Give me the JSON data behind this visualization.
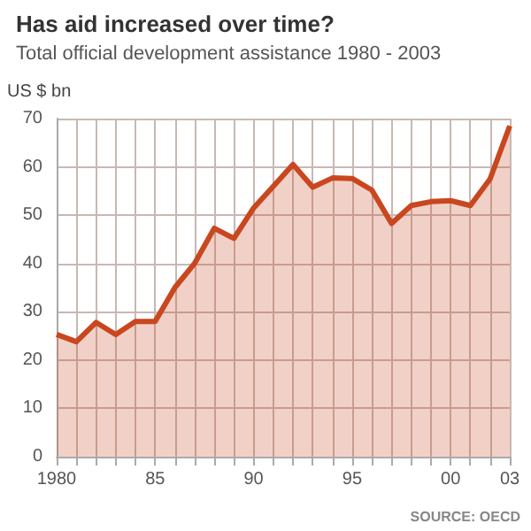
{
  "chart_data": {
    "type": "area",
    "title": "Has aid increased over time?",
    "subtitle": "Total official development assistance 1980 - 2003",
    "ylabel": "US $ bn",
    "annotations": [
      "SOURCE: OECD"
    ],
    "x": [
      1980,
      1981,
      1982,
      1983,
      1984,
      1985,
      1986,
      1987,
      1988,
      1989,
      1990,
      1991,
      1992,
      1993,
      1994,
      1995,
      1996,
      1997,
      1998,
      1999,
      2000,
      2001,
      2002,
      2003
    ],
    "series": [
      {
        "color": "#c9471f",
        "values": [
          25.3,
          23.8,
          27.8,
          25.3,
          28,
          28,
          35,
          40,
          47.3,
          45.2,
          51.5,
          56,
          60.5,
          55.8,
          57.7,
          57.6,
          55.2,
          48.3,
          52,
          52.8,
          53,
          52,
          57.5,
          68.5
        ]
      }
    ],
    "xlim": [
      1980,
      2003
    ],
    "xticks": [
      {
        "value": 1980,
        "label": "1980"
      },
      {
        "value": 1981,
        "label": null
      },
      {
        "value": 1982,
        "label": null
      },
      {
        "value": 1983,
        "label": null
      },
      {
        "value": 1984,
        "label": null
      },
      {
        "value": 1985,
        "label": "85"
      },
      {
        "value": 1986,
        "label": null
      },
      {
        "value": 1987,
        "label": null
      },
      {
        "value": 1988,
        "label": null
      },
      {
        "value": 1989,
        "label": null
      },
      {
        "value": 1990,
        "label": "90"
      },
      {
        "value": 1991,
        "label": null
      },
      {
        "value": 1992,
        "label": null
      },
      {
        "value": 1993,
        "label": null
      },
      {
        "value": 1994,
        "label": null
      },
      {
        "value": 1995,
        "label": "95"
      },
      {
        "value": 1996,
        "label": null
      },
      {
        "value": 1997,
        "label": null
      },
      {
        "value": 1998,
        "label": null
      },
      {
        "value": 1999,
        "label": null
      },
      {
        "value": 2000,
        "label": "00"
      },
      {
        "value": 2001,
        "label": null
      },
      {
        "value": 2002,
        "label": null
      },
      {
        "value": 2003,
        "label": "03"
      }
    ],
    "ylim": [
      0,
      70
    ],
    "yticks": [
      0,
      10,
      20,
      30,
      40,
      50,
      60,
      70
    ],
    "grid": true
  }
}
